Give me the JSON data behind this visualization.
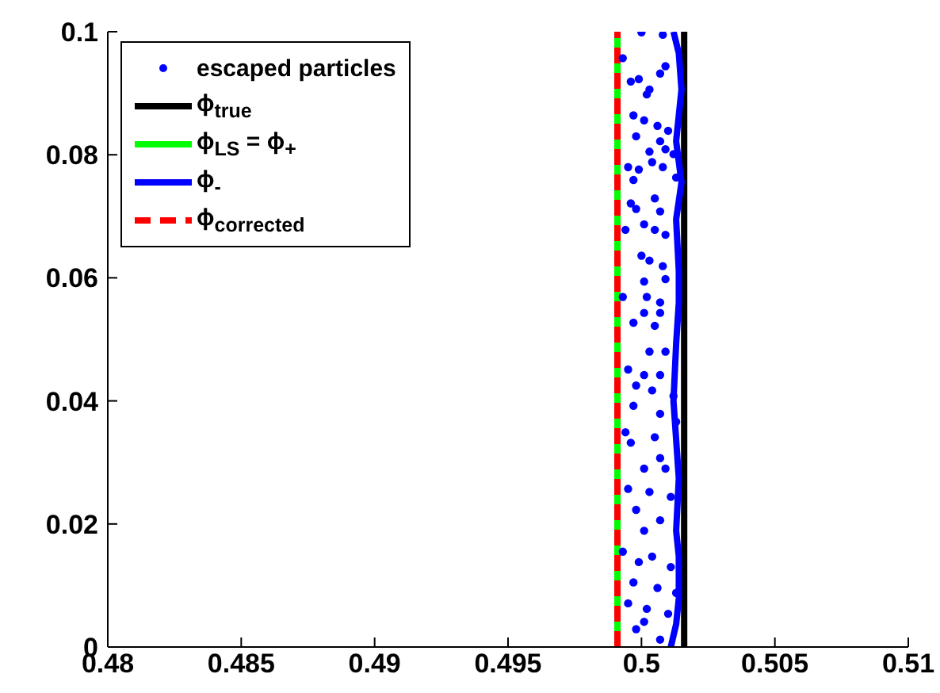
{
  "chart_data": {
    "type": "scatter",
    "xlim": [
      0.48,
      0.51
    ],
    "xticks": [
      0.48,
      0.485,
      0.49,
      0.495,
      0.5,
      0.505,
      0.51
    ],
    "ylim": [
      0,
      0.1
    ],
    "yticks": [
      0,
      0.02,
      0.04,
      0.06,
      0.08,
      0.1
    ],
    "grid": false,
    "legend": "top left",
    "series": [
      {
        "name": "escaped particles",
        "marker": "circle",
        "color": "#0000ff",
        "x": [
          0.5,
          0.5008,
          0.4993,
          0.5009,
          0.5007,
          0.4996,
          0.4999,
          0.5002,
          0.5003,
          0.4997,
          0.5001,
          0.5006,
          0.501,
          0.4998,
          0.5007,
          0.5003,
          0.5009,
          0.5012,
          0.4995,
          0.4999,
          0.5004,
          0.5008,
          0.4997,
          0.5013,
          0.4996,
          0.4998,
          0.5005,
          0.5007,
          0.4994,
          0.5001,
          0.5005,
          0.5009,
          0.5,
          0.5003,
          0.5008,
          0.5001,
          0.5009,
          0.4993,
          0.5002,
          0.5007,
          0.4997,
          0.5001,
          0.5007,
          0.5005,
          0.5003,
          0.5009,
          0.4995,
          0.5001,
          0.5007,
          0.4998,
          0.5004,
          0.5012,
          0.4997,
          0.5007,
          0.5013,
          0.4994,
          0.4996,
          0.5005,
          0.5007,
          0.5001,
          0.5009,
          0.4995,
          0.5003,
          0.5011,
          0.4998,
          0.5007,
          0.5001,
          0.4993,
          0.4999,
          0.5004,
          0.5011,
          0.4997,
          0.5006,
          0.5013,
          0.4995,
          0.5002,
          0.501,
          0.4998,
          0.5007,
          0.5001
        ],
        "values": [
          0.0999,
          0.0995,
          0.0957,
          0.0944,
          0.0932,
          0.0919,
          0.0923,
          0.0898,
          0.0906,
          0.0864,
          0.0856,
          0.0847,
          0.0839,
          0.083,
          0.0822,
          0.0805,
          0.0809,
          0.0801,
          0.078,
          0.0776,
          0.0788,
          0.078,
          0.0759,
          0.0763,
          0.0721,
          0.0712,
          0.0729,
          0.0708,
          0.0678,
          0.0687,
          0.0678,
          0.067,
          0.0636,
          0.0628,
          0.0619,
          0.0594,
          0.0598,
          0.0569,
          0.0569,
          0.056,
          0.0527,
          0.0543,
          0.0543,
          0.0522,
          0.048,
          0.048,
          0.0451,
          0.0442,
          0.0442,
          0.0425,
          0.0417,
          0.0408,
          0.0392,
          0.0379,
          0.0366,
          0.0349,
          0.0332,
          0.0341,
          0.0307,
          0.029,
          0.029,
          0.0257,
          0.0252,
          0.0244,
          0.0223,
          0.0206,
          0.0189,
          0.0155,
          0.0138,
          0.0147,
          0.013,
          0.0105,
          0.0096,
          0.0088,
          0.0071,
          0.0062,
          0.0054,
          0.0029,
          0.0012,
          0.0041
        ]
      },
      {
        "name": "ϕ$_{true}$",
        "type": "line",
        "marker": "none",
        "line_style": "solid",
        "color": "#000000",
        "x": [
          0.5016,
          0.5016
        ],
        "values": [
          0,
          0.1
        ]
      },
      {
        "name": "ϕ$_{LS}$ = ϕ$_{+}$",
        "type": "line",
        "marker": "none",
        "line_style": "solid",
        "color": "#00ff00",
        "x": [
          0.4991,
          0.4991
        ],
        "values": [
          0,
          0.1
        ]
      },
      {
        "name": "ϕ$_{-}$",
        "type": "line",
        "marker": "none",
        "line_style": "solid",
        "color": "#0000ff",
        "x": [
          0.5012,
          0.5014,
          0.5015,
          0.5014,
          0.5013,
          0.5015,
          0.5013,
          0.5014,
          0.5014,
          0.5013,
          0.5012,
          0.5014,
          0.5013,
          0.5014,
          0.5014,
          0.5013,
          0.5011
        ],
        "values": [
          0.1,
          0.0965,
          0.0906,
          0.0864,
          0.0822,
          0.0755,
          0.0695,
          0.0611,
          0.056,
          0.0493,
          0.04,
          0.0274,
          0.0189,
          0.0147,
          0.0079,
          0.0037,
          0
        ]
      },
      {
        "name": "ϕ$_{corrected}$",
        "type": "line",
        "marker": "none",
        "line_style": "dashed",
        "color": "#ff0000",
        "x": [
          0.4991,
          0.4991
        ],
        "values": [
          0,
          0.1
        ]
      }
    ]
  }
}
